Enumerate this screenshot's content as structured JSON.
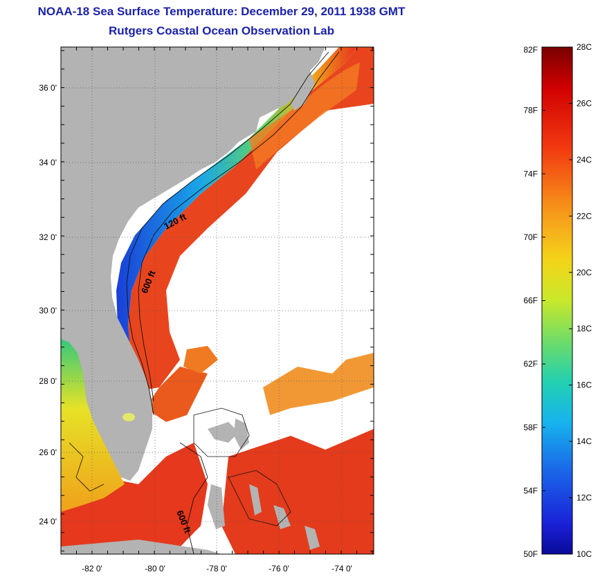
{
  "title": {
    "line1": "NOAA-18 Sea Surface Temperature:  December 29, 2011 1938 GMT",
    "line2": "Rutgers Coastal Ocean Observation Lab"
  },
  "map": {
    "lat_ticks": [
      "36 0'",
      "34 0'",
      "32 0'",
      "30 0'",
      "28 0'",
      "26 0'",
      "24 0'"
    ],
    "lon_ticks": [
      "-82 0'",
      "-80 0'",
      "-78 0'",
      "-76 0'",
      "-74 0'"
    ],
    "contour_labels": [
      "120 ft",
      "600 ft",
      "600 ft"
    ],
    "colors": {
      "land": "#b3b3b3",
      "ocean_no_data": "#ffffff",
      "cold": "#1b3fd6",
      "warm": "#e8331c"
    }
  },
  "colorbar": {
    "fahrenheit_labels": [
      "82F",
      "78F",
      "74F",
      "70F",
      "66F",
      "62F",
      "58F",
      "54F",
      "50F"
    ],
    "celsius_labels": [
      "28C",
      "26C",
      "24C",
      "22C",
      "20C",
      "18C",
      "16C",
      "14C",
      "12C",
      "10C"
    ]
  }
}
